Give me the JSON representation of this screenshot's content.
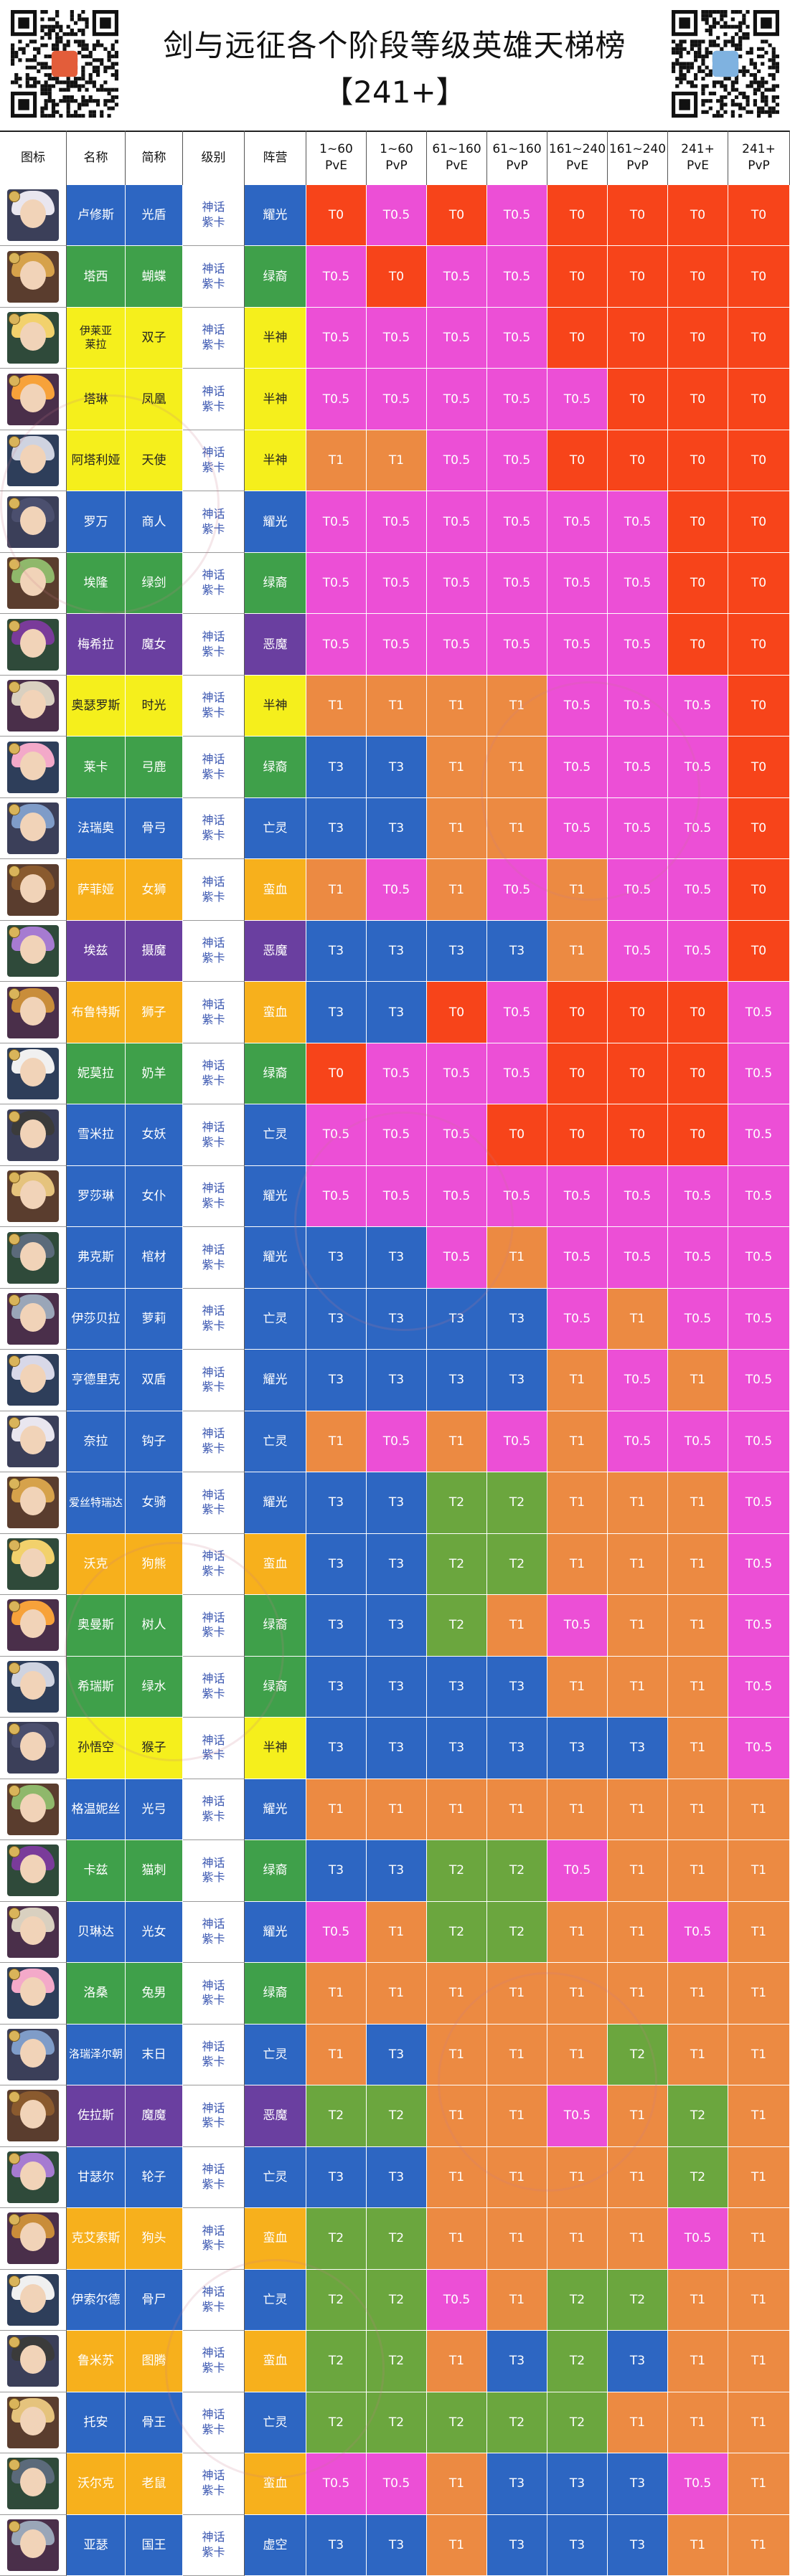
{
  "header": {
    "title_line1": "剑与远征各个阶段等级英雄天梯榜",
    "title_line2": "【241+】"
  },
  "columns": [
    "图标",
    "名称",
    "简称",
    "级别",
    "阵营",
    "1~60\nPvE",
    "1~60\nPvP",
    "61~160\nPvE",
    "61~160\nPvP",
    "161~240\nPvE",
    "161~240\nPvP",
    "241+\nPvE",
    "241+\nPvP"
  ],
  "colors": {
    "T0": "#f7441a",
    "T0.5": "#ec4fd6",
    "T1": "#ec8a42",
    "T2": "#6ba63e",
    "T3": "#2d66c2",
    "耀光": "#2d66c2",
    "绿裔": "#3fa04a",
    "半神": "#f5ef1c",
    "恶魔": "#6a3fa0",
    "亡灵": "#2d66c2",
    "蛮血": "#f7b01c",
    "虚空": "#2d66c2"
  },
  "heroes": [
    {
      "name": "卢修斯",
      "short": "光盾",
      "level": "神话\n紫卡",
      "faction": "耀光",
      "tiers": [
        "T0",
        "T0.5",
        "T0",
        "T0.5",
        "T0",
        "T0",
        "T0",
        "T0"
      ]
    },
    {
      "name": "塔西",
      "short": "蝴蝶",
      "level": "神话\n紫卡",
      "faction": "绿裔",
      "tiers": [
        "T0.5",
        "T0",
        "T0.5",
        "T0.5",
        "T0",
        "T0",
        "T0",
        "T0"
      ]
    },
    {
      "name": "伊莱亚\n莱拉",
      "short": "双子",
      "level": "神话\n紫卡",
      "faction": "半神",
      "tiers": [
        "T0.5",
        "T0.5",
        "T0.5",
        "T0.5",
        "T0",
        "T0",
        "T0",
        "T0"
      ]
    },
    {
      "name": "塔琳",
      "short": "凤凰",
      "level": "神话\n紫卡",
      "faction": "半神",
      "tiers": [
        "T0.5",
        "T0.5",
        "T0.5",
        "T0.5",
        "T0.5",
        "T0",
        "T0",
        "T0"
      ]
    },
    {
      "name": "阿塔利娅",
      "short": "天使",
      "level": "神话\n紫卡",
      "faction": "半神",
      "tiers": [
        "T1",
        "T1",
        "T0.5",
        "T0.5",
        "T0",
        "T0",
        "T0",
        "T0"
      ]
    },
    {
      "name": "罗万",
      "short": "商人",
      "level": "神话\n紫卡",
      "faction": "耀光",
      "tiers": [
        "T0.5",
        "T0.5",
        "T0.5",
        "T0.5",
        "T0.5",
        "T0.5",
        "T0",
        "T0"
      ]
    },
    {
      "name": "埃隆",
      "short": "绿剑",
      "level": "神话\n紫卡",
      "faction": "绿裔",
      "tiers": [
        "T0.5",
        "T0.5",
        "T0.5",
        "T0.5",
        "T0.5",
        "T0.5",
        "T0",
        "T0"
      ]
    },
    {
      "name": "梅希拉",
      "short": "魔女",
      "level": "神话\n紫卡",
      "faction": "恶魔",
      "tiers": [
        "T0.5",
        "T0.5",
        "T0.5",
        "T0.5",
        "T0.5",
        "T0.5",
        "T0",
        "T0"
      ]
    },
    {
      "name": "奥瑟罗斯",
      "short": "时光",
      "level": "神话\n紫卡",
      "faction": "半神",
      "tiers": [
        "T1",
        "T1",
        "T1",
        "T1",
        "T0.5",
        "T0.5",
        "T0.5",
        "T0"
      ]
    },
    {
      "name": "莱卡",
      "short": "弓鹿",
      "level": "神话\n紫卡",
      "faction": "绿裔",
      "tiers": [
        "T3",
        "T3",
        "T1",
        "T1",
        "T0.5",
        "T0.5",
        "T0.5",
        "T0"
      ]
    },
    {
      "name": "法瑞奥",
      "short": "骨弓",
      "level": "神话\n紫卡",
      "faction": "亡灵",
      "tiers": [
        "T3",
        "T3",
        "T1",
        "T1",
        "T0.5",
        "T0.5",
        "T0.5",
        "T0"
      ]
    },
    {
      "name": "萨菲娅",
      "short": "女狮",
      "level": "神话\n紫卡",
      "faction": "蛮血",
      "tiers": [
        "T1",
        "T0.5",
        "T1",
        "T0.5",
        "T1",
        "T0.5",
        "T0.5",
        "T0"
      ]
    },
    {
      "name": "埃兹",
      "short": "摄魔",
      "level": "神话\n紫卡",
      "faction": "恶魔",
      "tiers": [
        "T3",
        "T3",
        "T3",
        "T3",
        "T1",
        "T0.5",
        "T0.5",
        "T0"
      ]
    },
    {
      "name": "布鲁特斯",
      "short": "狮子",
      "level": "神话\n紫卡",
      "faction": "蛮血",
      "tiers": [
        "T3",
        "T3",
        "T0",
        "T0.5",
        "T0",
        "T0",
        "T0",
        "T0.5"
      ]
    },
    {
      "name": "妮莫拉",
      "short": "奶羊",
      "level": "神话\n紫卡",
      "faction": "绿裔",
      "tiers": [
        "T0",
        "T0.5",
        "T0.5",
        "T0.5",
        "T0",
        "T0",
        "T0",
        "T0.5"
      ]
    },
    {
      "name": "雪米拉",
      "short": "女妖",
      "level": "神话\n紫卡",
      "faction": "亡灵",
      "tiers": [
        "T0.5",
        "T0.5",
        "T0.5",
        "T0",
        "T0",
        "T0",
        "T0",
        "T0.5"
      ]
    },
    {
      "name": "罗莎琳",
      "short": "女仆",
      "level": "神话\n紫卡",
      "faction": "耀光",
      "tiers": [
        "T0.5",
        "T0.5",
        "T0.5",
        "T0.5",
        "T0.5",
        "T0.5",
        "T0.5",
        "T0.5"
      ]
    },
    {
      "name": "弗克斯",
      "short": "棺材",
      "level": "神话\n紫卡",
      "faction": "耀光",
      "tiers": [
        "T3",
        "T3",
        "T0.5",
        "T1",
        "T0.5",
        "T0.5",
        "T0.5",
        "T0.5"
      ]
    },
    {
      "name": "伊莎贝拉",
      "short": "萝莉",
      "level": "神话\n紫卡",
      "faction": "亡灵",
      "tiers": [
        "T3",
        "T3",
        "T3",
        "T3",
        "T0.5",
        "T1",
        "T0.5",
        "T0.5"
      ]
    },
    {
      "name": "亨德里克",
      "short": "双盾",
      "level": "神话\n紫卡",
      "faction": "耀光",
      "tiers": [
        "T3",
        "T3",
        "T3",
        "T3",
        "T1",
        "T0.5",
        "T1",
        "T0.5"
      ]
    },
    {
      "name": "奈拉",
      "short": "钩子",
      "level": "神话\n紫卡",
      "faction": "亡灵",
      "tiers": [
        "T1",
        "T0.5",
        "T1",
        "T0.5",
        "T1",
        "T0.5",
        "T0.5",
        "T0.5"
      ]
    },
    {
      "name": "爱丝特瑞达",
      "short": "女骑",
      "level": "神话\n紫卡",
      "faction": "耀光",
      "tiers": [
        "T3",
        "T3",
        "T2",
        "T2",
        "T1",
        "T1",
        "T1",
        "T0.5"
      ]
    },
    {
      "name": "沃克",
      "short": "狗熊",
      "level": "神话\n紫卡",
      "faction": "蛮血",
      "tiers": [
        "T3",
        "T3",
        "T2",
        "T2",
        "T1",
        "T1",
        "T1",
        "T0.5"
      ]
    },
    {
      "name": "奥曼斯",
      "short": "树人",
      "level": "神话\n紫卡",
      "faction": "绿裔",
      "tiers": [
        "T3",
        "T3",
        "T2",
        "T1",
        "T0.5",
        "T1",
        "T1",
        "T0.5"
      ]
    },
    {
      "name": "希瑞斯",
      "short": "绿水",
      "level": "神话\n紫卡",
      "faction": "绿裔",
      "tiers": [
        "T3",
        "T3",
        "T3",
        "T3",
        "T1",
        "T1",
        "T1",
        "T0.5"
      ]
    },
    {
      "name": "孙悟空",
      "short": "猴子",
      "level": "神话\n紫卡",
      "faction": "半神",
      "tiers": [
        "T3",
        "T3",
        "T3",
        "T3",
        "T3",
        "T3",
        "T1",
        "T0.5"
      ]
    },
    {
      "name": "格温妮丝",
      "short": "光弓",
      "level": "神话\n紫卡",
      "faction": "耀光",
      "tiers": [
        "T1",
        "T1",
        "T1",
        "T1",
        "T1",
        "T1",
        "T1",
        "T1"
      ]
    },
    {
      "name": "卡兹",
      "short": "猫刺",
      "level": "神话\n紫卡",
      "faction": "绿裔",
      "tiers": [
        "T3",
        "T3",
        "T2",
        "T2",
        "T0.5",
        "T1",
        "T1",
        "T1"
      ]
    },
    {
      "name": "贝琳达",
      "short": "光女",
      "level": "神话\n紫卡",
      "faction": "耀光",
      "tiers": [
        "T0.5",
        "T1",
        "T2",
        "T2",
        "T1",
        "T1",
        "T0.5",
        "T1"
      ]
    },
    {
      "name": "洛桑",
      "short": "兔男",
      "level": "神话\n紫卡",
      "faction": "绿裔",
      "tiers": [
        "T1",
        "T1",
        "T1",
        "T1",
        "T1",
        "T1",
        "T1",
        "T1"
      ]
    },
    {
      "name": "洛瑞泽尔朝",
      "short": "末日",
      "level": "神话\n紫卡",
      "faction": "亡灵",
      "tiers": [
        "T1",
        "T3",
        "T1",
        "T1",
        "T1",
        "T2",
        "T1",
        "T1"
      ]
    },
    {
      "name": "佐拉斯",
      "short": "魔魔",
      "level": "神话\n紫卡",
      "faction": "恶魔",
      "tiers": [
        "T2",
        "T2",
        "T1",
        "T1",
        "T0.5",
        "T1",
        "T2",
        "T1"
      ]
    },
    {
      "name": "甘瑟尔",
      "short": "轮子",
      "level": "神话\n紫卡",
      "faction": "亡灵",
      "tiers": [
        "T3",
        "T3",
        "T1",
        "T1",
        "T1",
        "T1",
        "T2",
        "T1"
      ]
    },
    {
      "name": "克艾索斯",
      "short": "狗头",
      "level": "神话\n紫卡",
      "faction": "蛮血",
      "tiers": [
        "T2",
        "T2",
        "T1",
        "T1",
        "T1",
        "T1",
        "T0.5",
        "T1"
      ]
    },
    {
      "name": "伊索尔德",
      "short": "骨尸",
      "level": "神话\n紫卡",
      "faction": "亡灵",
      "tiers": [
        "T2",
        "T2",
        "T0.5",
        "T1",
        "T2",
        "T2",
        "T1",
        "T1"
      ]
    },
    {
      "name": "鲁米苏",
      "short": "图腾",
      "level": "神话\n紫卡",
      "faction": "蛮血",
      "tiers": [
        "T2",
        "T2",
        "T1",
        "T3",
        "T2",
        "T3",
        "T1",
        "T1"
      ]
    },
    {
      "name": "托安",
      "short": "骨王",
      "level": "神话\n紫卡",
      "faction": "亡灵",
      "tiers": [
        "T2",
        "T2",
        "T2",
        "T2",
        "T2",
        "T1",
        "T1",
        "T1"
      ]
    },
    {
      "name": "沃尔克",
      "short": "老鼠",
      "level": "神话\n紫卡",
      "faction": "蛮血",
      "tiers": [
        "T0.5",
        "T0.5",
        "T1",
        "T3",
        "T3",
        "T3",
        "T0.5",
        "T1"
      ]
    },
    {
      "name": "亚瑟",
      "short": "国王",
      "level": "神话\n紫卡",
      "faction": "虚空",
      "tiers": [
        "T3",
        "T3",
        "T1",
        "T3",
        "T3",
        "T3",
        "T1",
        "T1"
      ]
    }
  ]
}
